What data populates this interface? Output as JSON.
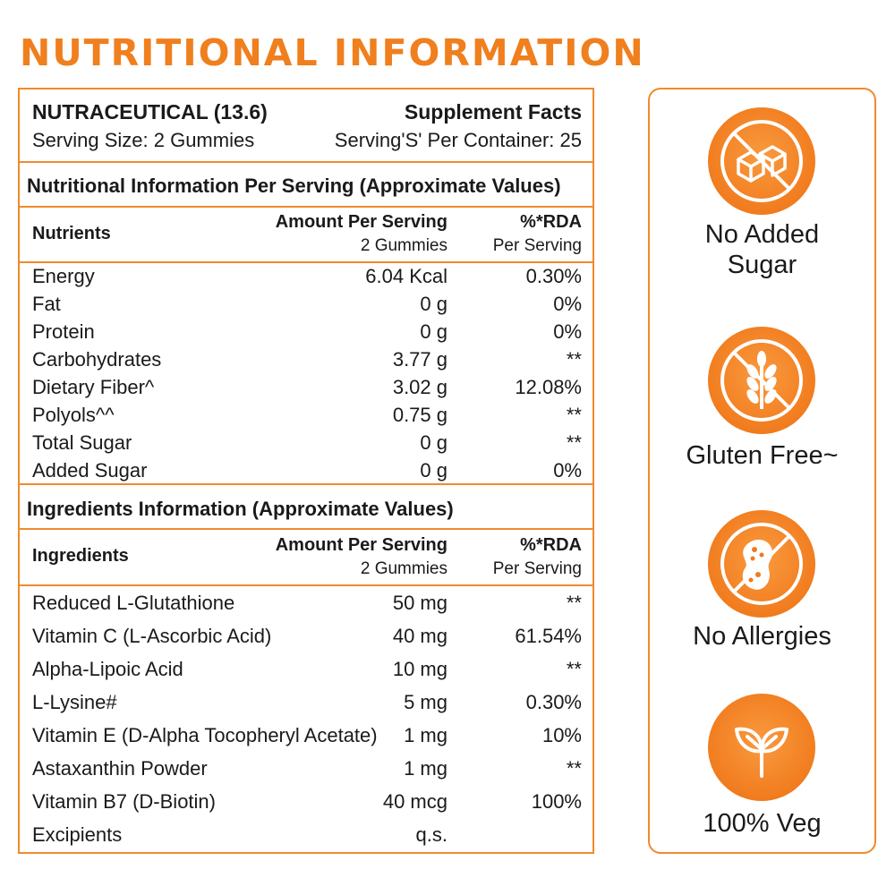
{
  "page_title": "NUTRITIONAL INFORMATION",
  "header": {
    "product": "NUTRACEUTICAL (13.6)",
    "facts": "Supplement Facts",
    "serving_size": "Serving Size: 2 Gummies",
    "servings_per_container": "Serving'S' Per Container: 25"
  },
  "nutrition": {
    "section_title": "Nutritional Information Per Serving (Approximate Values)",
    "col_name": "Nutrients",
    "col_amount": "Amount Per Serving",
    "col_amount_sub": "2 Gummies",
    "col_rda": "%*RDA",
    "col_rda_sub": "Per Serving",
    "rows": [
      {
        "name": "Energy",
        "amount": "6.04 Kcal",
        "rda": "0.30%"
      },
      {
        "name": "Fat",
        "amount": "0 g",
        "rda": "0%"
      },
      {
        "name": "Protein",
        "amount": "0 g",
        "rda": "0%"
      },
      {
        "name": "Carbohydrates",
        "amount": "3.77 g",
        "rda": "**"
      },
      {
        "name": "Dietary Fiber^",
        "amount": "3.02 g",
        "rda": "12.08%"
      },
      {
        "name": "Polyols^^",
        "amount": "0.75 g",
        "rda": "**"
      },
      {
        "name": "Total Sugar",
        "amount": "0 g",
        "rda": "**"
      },
      {
        "name": "Added Sugar",
        "amount": "0 g",
        "rda": "0%"
      }
    ]
  },
  "ingredients": {
    "section_title": "Ingredients Information (Approximate Values)",
    "col_name": "Ingredients",
    "col_amount": "Amount Per Serving",
    "col_amount_sub": "2 Gummies",
    "col_rda": "%*RDA",
    "col_rda_sub": "Per Serving",
    "rows": [
      {
        "name": "Reduced  L-Glutathione",
        "amount": "50 mg",
        "rda": "**"
      },
      {
        "name": "Vitamin C (L-Ascorbic Acid)",
        "amount": "40 mg",
        "rda": "61.54%"
      },
      {
        "name": "Alpha-Lipoic Acid",
        "amount": "10 mg",
        "rda": "**"
      },
      {
        "name": "L-Lysine#",
        "amount": "5 mg",
        "rda": "0.30%"
      },
      {
        "name": "Vitamin E (D-Alpha Tocopheryl Acetate)",
        "amount": "1 mg",
        "rda": "10%"
      },
      {
        "name": "Astaxanthin Powder",
        "amount": "1 mg",
        "rda": "**"
      },
      {
        "name": "Vitamin B7 (D-Biotin)",
        "amount": "40 mcg",
        "rda": "100%"
      },
      {
        "name": "Excipients",
        "amount": "q.s.",
        "rda": ""
      }
    ]
  },
  "badges": [
    {
      "label_line1": "No Added",
      "label_line2": "Sugar",
      "icon": "sugar-cubes-crossed-icon"
    },
    {
      "label_line1": "Gluten Free~",
      "label_line2": "",
      "icon": "wheat-crossed-icon"
    },
    {
      "label_line1": "No Allergies",
      "label_line2": "",
      "icon": "peanut-crossed-icon"
    },
    {
      "label_line1": "100% Veg",
      "label_line2": "",
      "icon": "leaf-sprout-icon"
    }
  ],
  "colors": {
    "accent": "#f07f1e",
    "border": "#f08a2c",
    "text": "#1a1a1a"
  }
}
